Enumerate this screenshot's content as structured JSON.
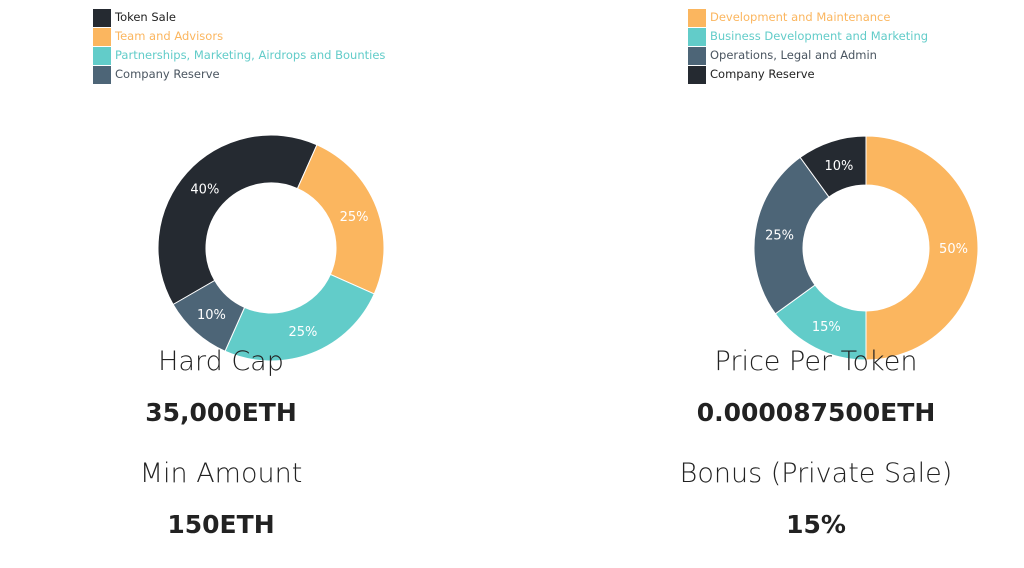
{
  "chart_data": [
    {
      "type": "pie",
      "donut": true,
      "labels": [
        "Token Sale",
        "Team and Advisors",
        "Partnerships, Marketing, Airdrops and Bounties",
        "Company Reserve"
      ],
      "values": [
        40,
        25,
        25,
        10
      ],
      "data_labels": [
        "40%",
        "25%",
        "25%",
        "10%"
      ],
      "colors": [
        "#252a31",
        "#fbb65f",
        "#62ccc9",
        "#4d6577"
      ],
      "legend": "top-left"
    },
    {
      "type": "pie",
      "donut": true,
      "labels": [
        "Development and Maintenance",
        "Business Development and Marketing",
        "Operations, Legal and Admin",
        "Company Reserve"
      ],
      "values": [
        50,
        15,
        25,
        10
      ],
      "data_labels": [
        "50%",
        "15%",
        "25%",
        "10%"
      ],
      "colors": [
        "#fbb65f",
        "#62ccc9",
        "#4d6577",
        "#252a31"
      ],
      "legend": "top-left"
    }
  ],
  "stats": [
    {
      "label": "Hard Cap",
      "value": "35,000ETH"
    },
    {
      "label": "Price Per Token",
      "value": "0.000087500ETH"
    },
    {
      "label": "Min Amount",
      "value": "150ETH"
    },
    {
      "label": "Bonus (Private Sale)",
      "value": "15%"
    }
  ]
}
